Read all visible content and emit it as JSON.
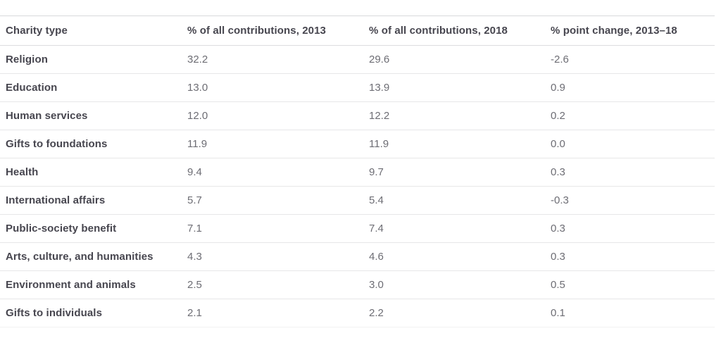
{
  "table": {
    "columns": [
      "Charity type",
      "% of all contributions, 2013",
      "% of all contributions, 2018",
      "% point change, 2013–18"
    ],
    "rows": [
      {
        "type": "Religion",
        "pct_2013": "32.2",
        "pct_2018": "29.6",
        "change": "-2.6"
      },
      {
        "type": "Education",
        "pct_2013": "13.0",
        "pct_2018": "13.9",
        "change": "0.9"
      },
      {
        "type": "Human services",
        "pct_2013": "12.0",
        "pct_2018": "12.2",
        "change": "0.2"
      },
      {
        "type": "Gifts to foundations",
        "pct_2013": "11.9",
        "pct_2018": "11.9",
        "change": "0.0"
      },
      {
        "type": "Health",
        "pct_2013": "9.4",
        "pct_2018": "9.7",
        "change": "0.3"
      },
      {
        "type": "International affairs",
        "pct_2013": "5.7",
        "pct_2018": "5.4",
        "change": "-0.3"
      },
      {
        "type": "Public-society benefit",
        "pct_2013": "7.1",
        "pct_2018": "7.4",
        "change": "0.3"
      },
      {
        "type": "Arts, culture, and humanities",
        "pct_2013": "4.3",
        "pct_2018": "4.6",
        "change": "0.3"
      },
      {
        "type": "Environment and animals",
        "pct_2013": "2.5",
        "pct_2018": "3.0",
        "change": "0.5"
      },
      {
        "type": "Gifts to individuals",
        "pct_2013": "2.1",
        "pct_2018": "2.2",
        "change": "0.1"
      }
    ],
    "colors": {
      "header_text": "#47464f",
      "label_text": "#47464f",
      "value_text": "#6d6d74",
      "row_border": "#e7e7e8",
      "top_border": "#d7d9db"
    }
  },
  "chart_data": {
    "type": "table",
    "title": "",
    "categories": [
      "Religion",
      "Education",
      "Human services",
      "Gifts to foundations",
      "Health",
      "International affairs",
      "Public-society benefit",
      "Arts, culture, and humanities",
      "Environment and animals",
      "Gifts to individuals"
    ],
    "series": [
      {
        "name": "% of all contributions, 2013",
        "values": [
          32.2,
          13.0,
          12.0,
          11.9,
          9.4,
          5.7,
          7.1,
          4.3,
          2.5,
          2.1
        ]
      },
      {
        "name": "% of all contributions, 2018",
        "values": [
          29.6,
          13.9,
          12.2,
          11.9,
          9.7,
          5.4,
          7.4,
          4.6,
          3.0,
          2.2
        ]
      },
      {
        "name": "% point change, 2013–18",
        "values": [
          -2.6,
          0.9,
          0.2,
          0.0,
          0.3,
          -0.3,
          0.3,
          0.3,
          0.5,
          0.1
        ]
      }
    ],
    "layout": {
      "grid": "horizontal-row-separators",
      "legend": "none"
    }
  }
}
